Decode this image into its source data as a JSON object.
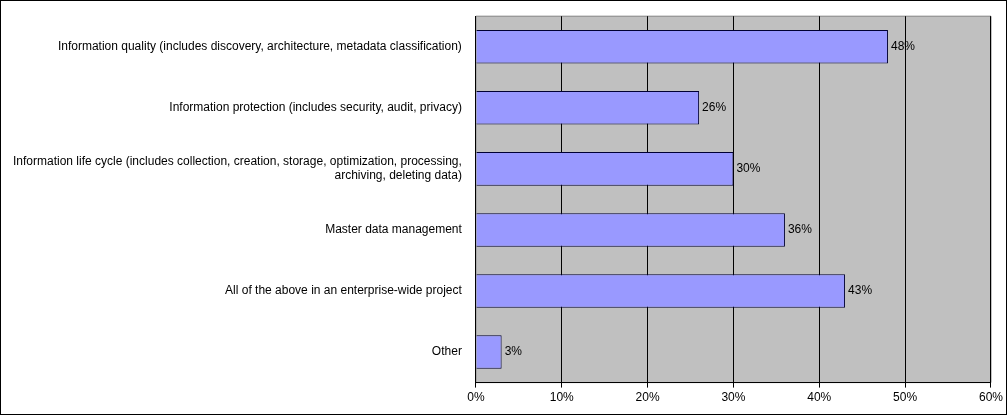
{
  "chart_data": {
    "type": "bar",
    "orientation": "horizontal",
    "categories": [
      "Information quality (includes discovery, architecture, metadata classification)",
      "Information protection (includes security, audit, privacy)",
      "Information life cycle (includes collection, creation, storage, optimization, processing, archiving, deleting data)",
      "Master data management",
      "All of the above in an enterprise-wide project",
      "Other"
    ],
    "values": [
      48,
      26,
      30,
      36,
      43,
      3
    ],
    "value_labels": [
      "48%",
      "26%",
      "30%",
      "36%",
      "43%",
      "3%"
    ],
    "color": "#9999ff",
    "xlim": [
      0,
      60
    ],
    "xticks": [
      {
        "value": 0,
        "label": "0%"
      },
      {
        "value": 10,
        "label": "10%"
      },
      {
        "value": 20,
        "label": "20%"
      },
      {
        "value": 30,
        "label": "30%"
      },
      {
        "value": 40,
        "label": "40%"
      },
      {
        "value": 50,
        "label": "50%"
      },
      {
        "value": 60,
        "label": "60%"
      }
    ],
    "grid": "x",
    "legend": false
  }
}
